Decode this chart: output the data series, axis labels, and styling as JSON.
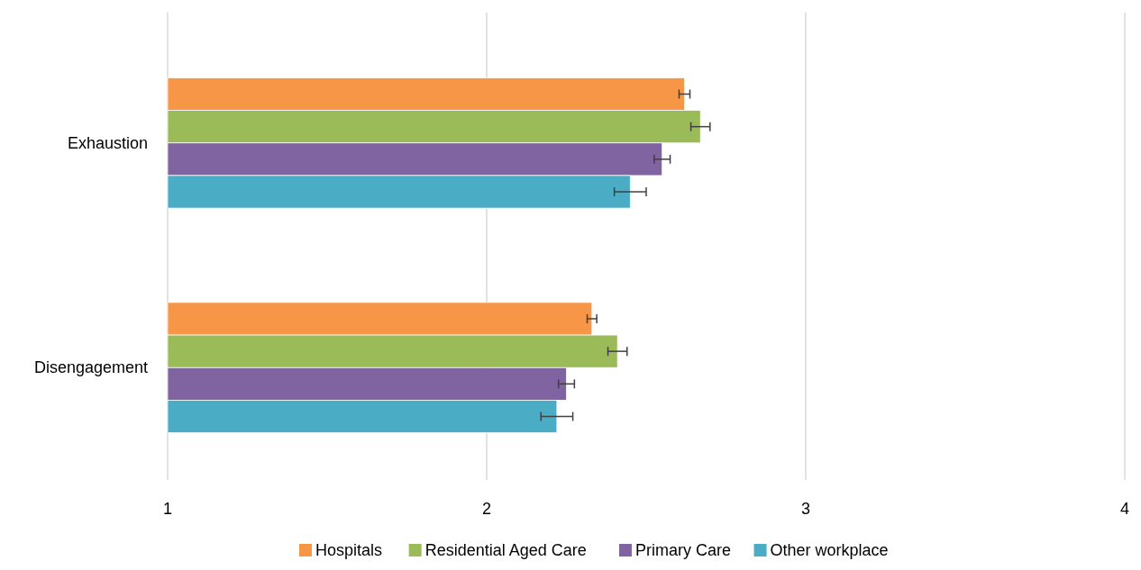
{
  "chart_data": {
    "type": "bar",
    "orientation": "horizontal",
    "categories": [
      "Exhaustion",
      "Disengagement"
    ],
    "series": [
      {
        "name": "Hospitals",
        "color": "#f79646",
        "values": [
          2.62,
          2.33
        ],
        "errors": [
          0.017,
          0.015
        ]
      },
      {
        "name": "Residential Aged Care",
        "color": "#9bbb59",
        "values": [
          2.67,
          2.41
        ],
        "errors": [
          0.03,
          0.03
        ]
      },
      {
        "name": "Primary Care",
        "color": "#8064a2",
        "values": [
          2.55,
          2.25
        ],
        "errors": [
          0.025,
          0.025
        ]
      },
      {
        "name": "Other workplace",
        "color": "#4bacc6",
        "values": [
          2.45,
          2.22
        ],
        "errors": [
          0.05,
          0.05
        ]
      }
    ],
    "xlim": [
      1,
      4
    ],
    "xticks": [
      1,
      2,
      3,
      4
    ],
    "grid": "x",
    "legend": "bottom"
  }
}
